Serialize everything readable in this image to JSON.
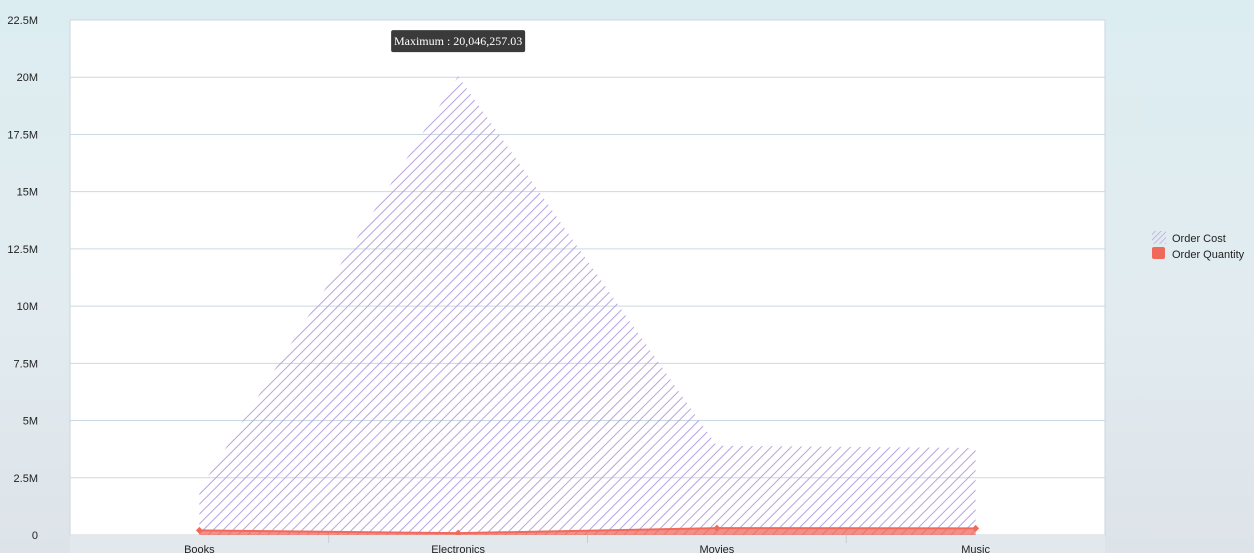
{
  "chart_data": {
    "type": "area",
    "categories": [
      "Books",
      "Electronics",
      "Movies",
      "Music"
    ],
    "series": [
      {
        "name": "Order Cost",
        "values": [
          1950000,
          20046257.03,
          3900000,
          3800000
        ],
        "color": "#b9a3e0",
        "style": "hatched-area"
      },
      {
        "name": "Order Quantity",
        "values": [
          200000,
          80000,
          300000,
          290000
        ],
        "color": "#f06a5c",
        "style": "filled-area"
      }
    ],
    "y_ticks": [
      "0",
      "2.5M",
      "5M",
      "7.5M",
      "10M",
      "12.5M",
      "15M",
      "17.5M",
      "20M",
      "22.5M"
    ],
    "ylim": [
      0,
      22500000
    ],
    "grid": true,
    "legend_position": "right",
    "tooltip": {
      "label": "Maximum : 20,046,257.03",
      "series": "Order Cost",
      "category": "Electronics"
    }
  }
}
